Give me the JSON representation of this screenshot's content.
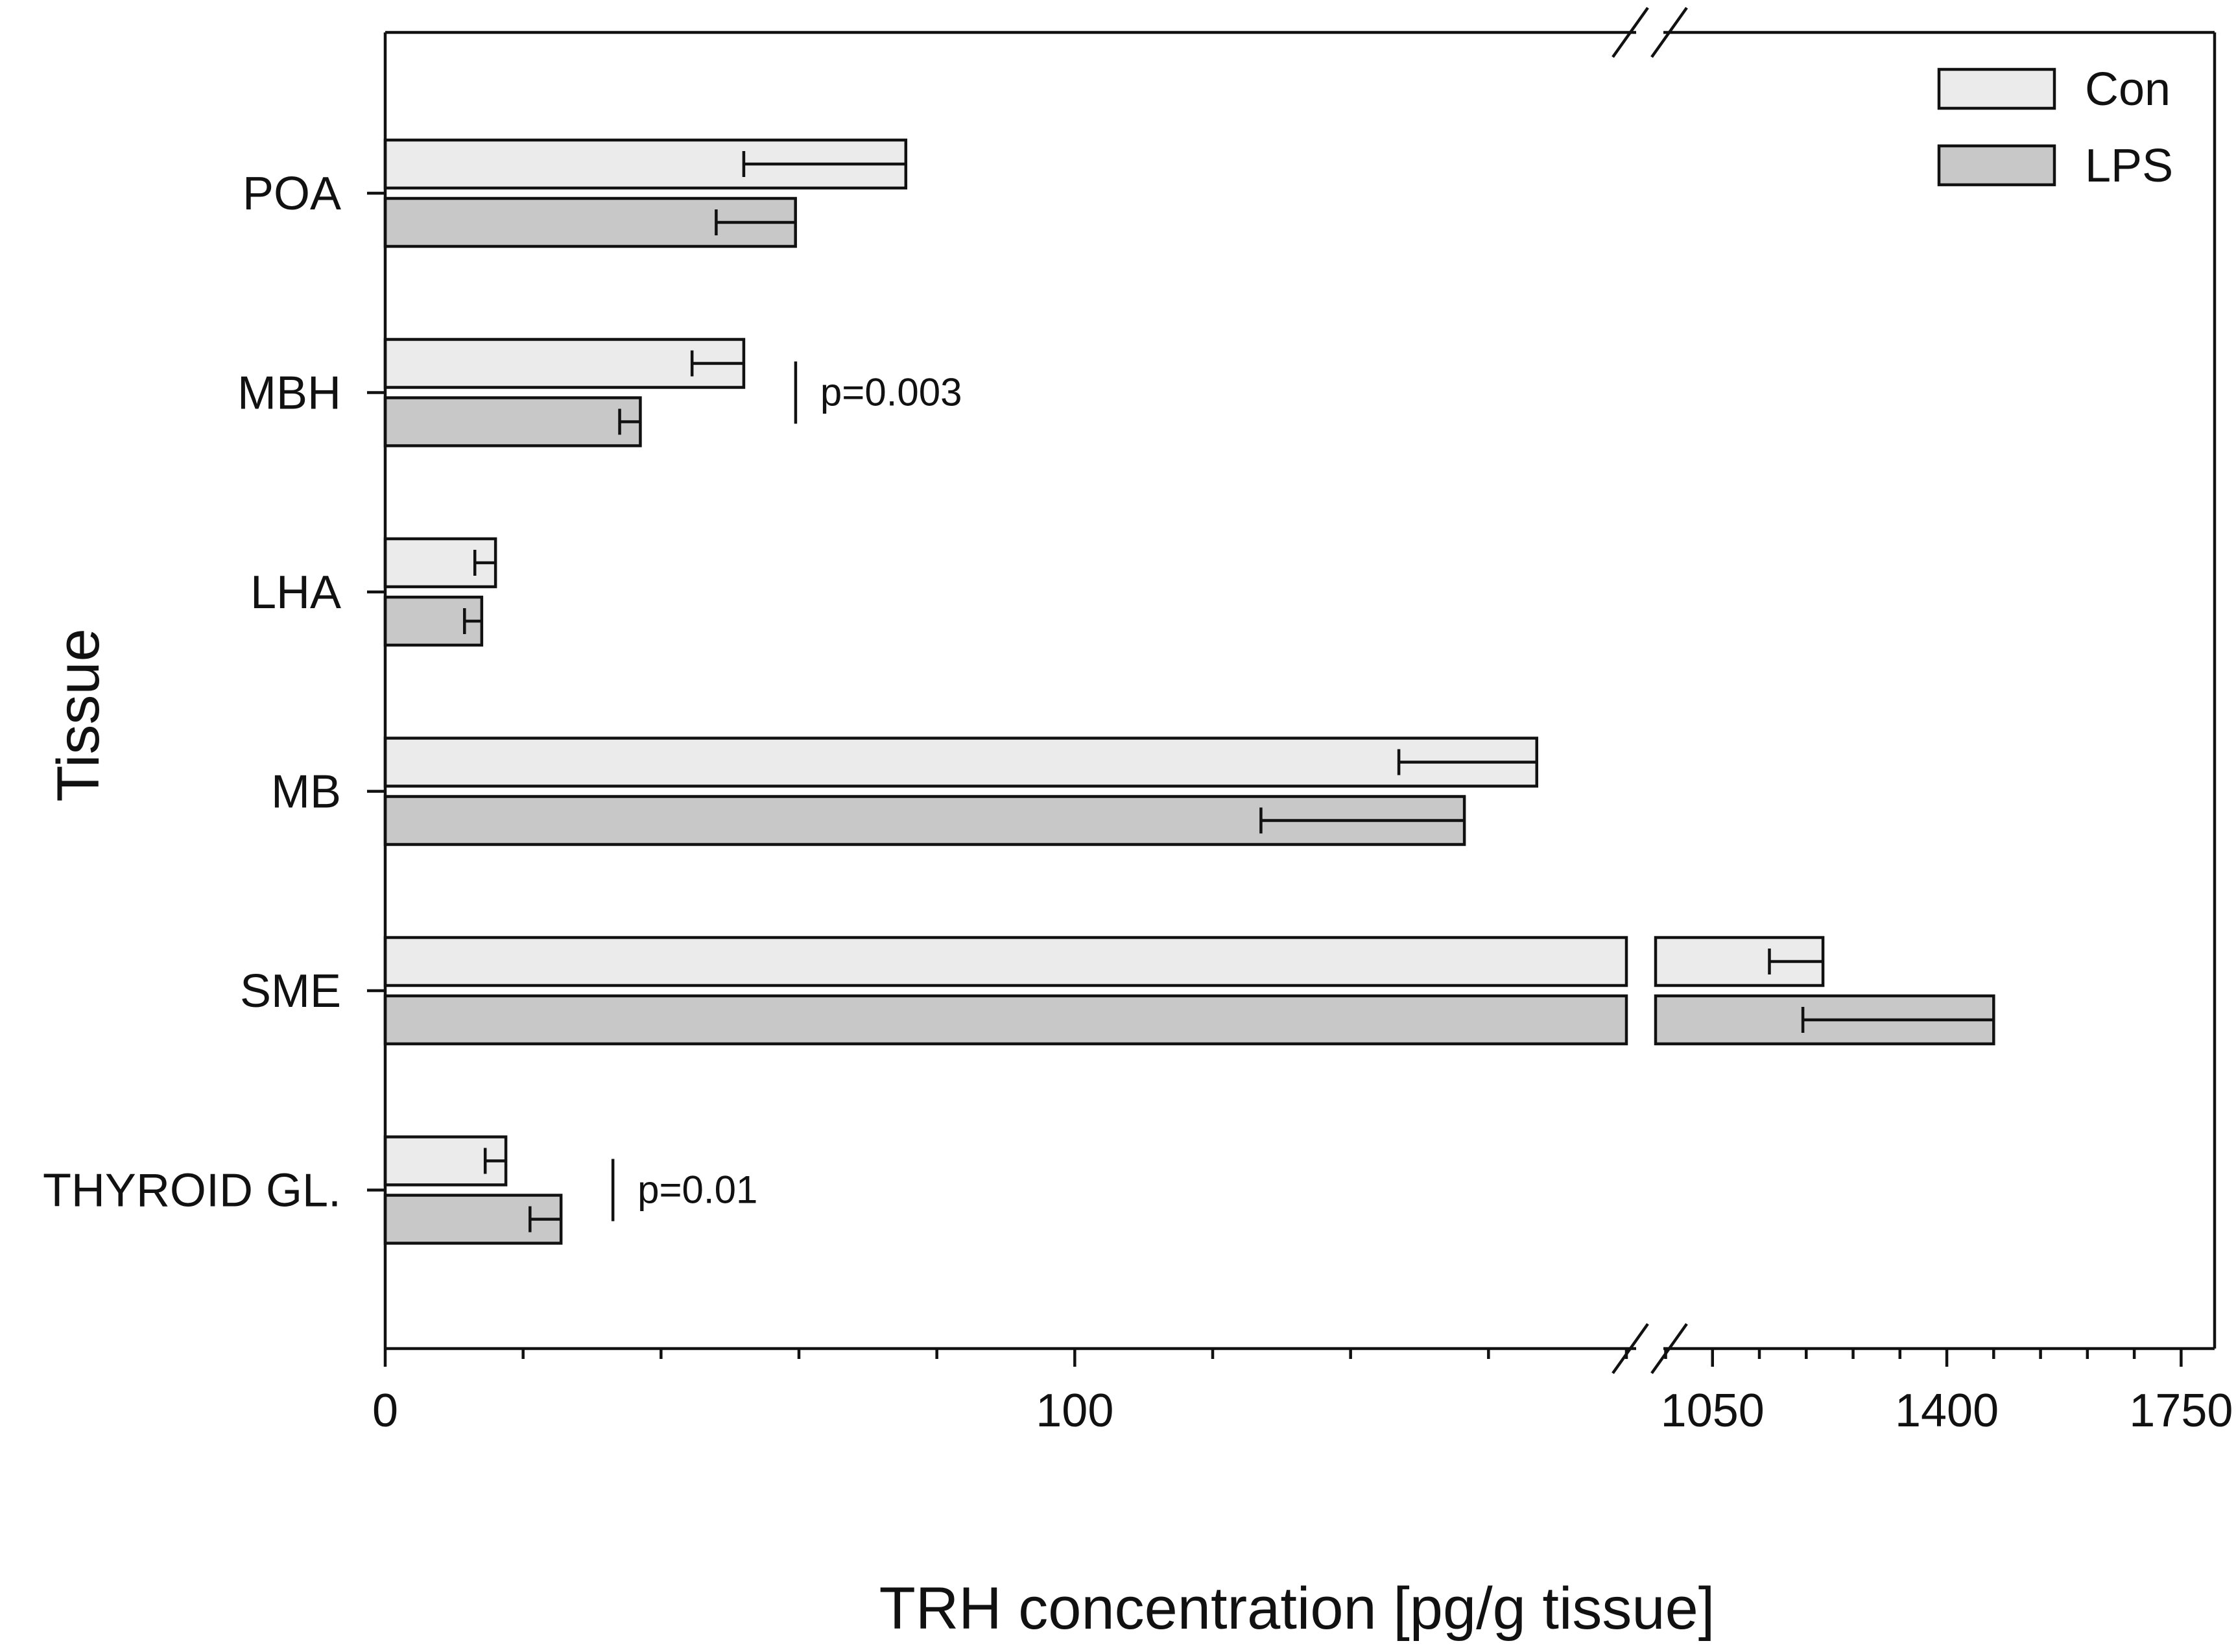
{
  "chart_data": {
    "type": "bar",
    "orientation": "horizontal",
    "title": "",
    "xlabel": "TRH concentration [pg/g tissue]",
    "ylabel": "Tissue",
    "categories": [
      "POA",
      "MBH",
      "LHA",
      "MB",
      "SME",
      "THYROID GL."
    ],
    "series": [
      {
        "name": "Con",
        "color": "#ebebeb",
        "values": [
          75.5,
          52.0,
          16.0,
          167.0,
          1215,
          17.5
        ],
        "error": [
          23.5,
          7.5,
          3.0,
          20.0,
          80,
          3.0
        ]
      },
      {
        "name": "LPS",
        "color": "#c8c8c8",
        "values": [
          59.5,
          37.0,
          14.0,
          156.5,
          1470,
          25.5
        ],
        "error": [
          11.5,
          3.0,
          2.5,
          29.5,
          285,
          4.5
        ]
      }
    ],
    "x_axis": {
      "break": true,
      "segment1": {
        "range": [
          0,
          180
        ],
        "ticks": [
          0,
          100
        ],
        "tick_labels": [
          "0",
          "100"
        ]
      },
      "segment2": {
        "range": [
          965,
          1800
        ],
        "ticks": [
          1050,
          1400,
          1750
        ],
        "tick_labels": [
          "1050",
          "1400",
          "1750"
        ]
      }
    },
    "annotations": [
      {
        "category": "MBH",
        "text": "p=0.003"
      },
      {
        "category": "THYROID GL.",
        "text": "p=0.01"
      }
    ],
    "legend": {
      "placement": "top-right",
      "entries": [
        "Con",
        "LPS"
      ]
    },
    "grid": false
  }
}
